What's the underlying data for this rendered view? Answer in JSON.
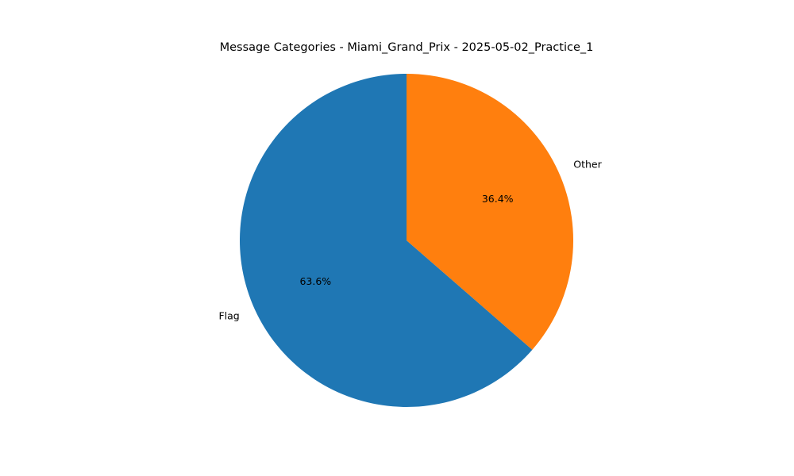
{
  "chart_data": {
    "type": "pie",
    "title": "Message Categories - Miami_Grand_Prix - 2025-05-02_Practice_1",
    "slices": [
      {
        "label": "Flag",
        "value": 63.6,
        "pct_label": "63.6%",
        "color": "#1f77b4"
      },
      {
        "label": "Other",
        "value": 36.4,
        "pct_label": "36.4%",
        "color": "#ff7f0e"
      }
    ],
    "start_angle_deg": 90,
    "direction": "counterclockwise"
  }
}
